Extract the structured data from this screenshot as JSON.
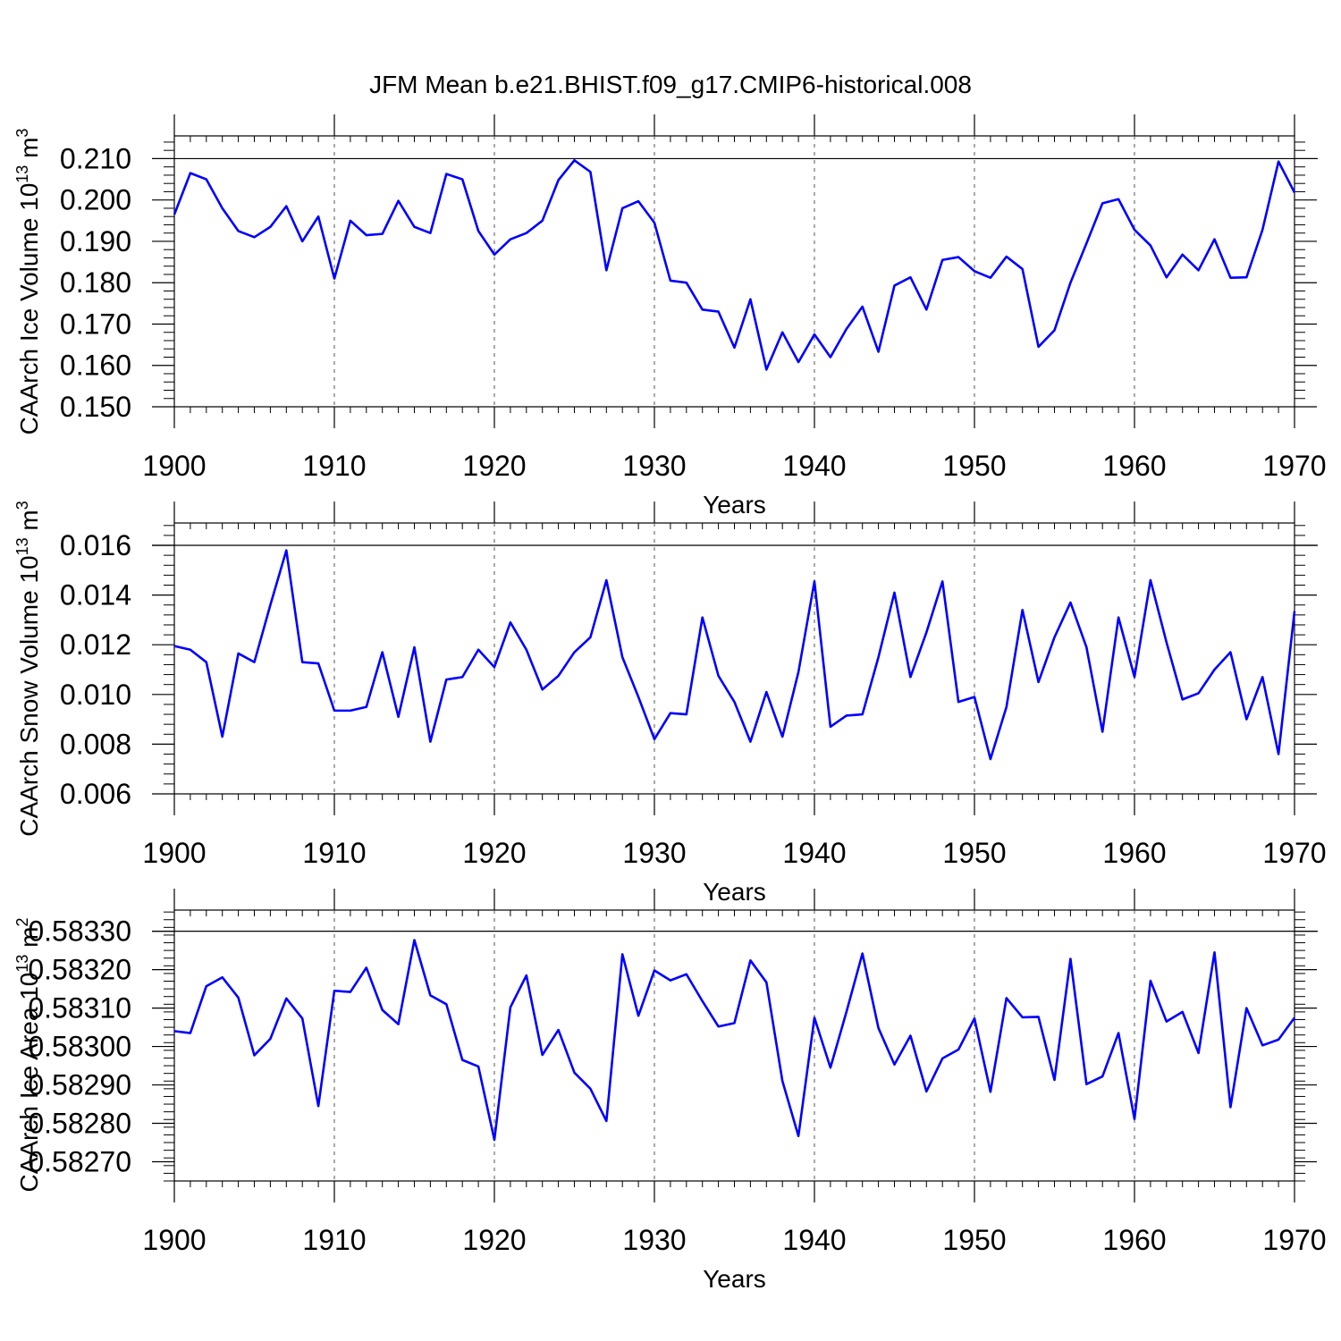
{
  "chart_data": [
    {
      "type": "line",
      "title": "JFM Mean b.e21.BHIST.f09_g17.CMIP6-historical.008",
      "ylabel": "CAArch Ice Volume 10",
      "ylabel_exponent": "13",
      "ylabel_unit": "m",
      "ylabel_unit_exponent": "3",
      "xlabel": "Years",
      "xlim": [
        1900,
        1970
      ],
      "ylim": [
        0.15,
        0.2155
      ],
      "xticks": [
        1900,
        1910,
        1920,
        1930,
        1940,
        1950,
        1960,
        1970
      ],
      "xtick_labels": [
        "1900",
        "1910",
        "1920",
        "1930",
        "1940",
        "1950",
        "1960",
        "1970"
      ],
      "yticks": [
        0.15,
        0.16,
        0.17,
        0.18,
        0.19,
        0.2,
        0.21
      ],
      "ytick_labels": [
        "0.150",
        "0.160",
        "0.170",
        "0.180",
        "0.190",
        "0.200",
        "0.210"
      ],
      "ref_line": 0.21,
      "color": "#0000ff",
      "series": [
        {
          "name": "CAArch Ice Volume",
          "x_start": 1900,
          "values": [
            0.1965,
            0.2065,
            0.205,
            0.198,
            0.1925,
            0.191,
            0.1935,
            0.1985,
            0.19,
            0.196,
            0.181,
            0.195,
            0.1915,
            0.1918,
            0.1998,
            0.1935,
            0.192,
            0.2063,
            0.205,
            0.1925,
            0.1868,
            0.1905,
            0.192,
            0.195,
            0.2048,
            0.2096,
            0.2068,
            0.183,
            0.198,
            0.1997,
            0.1945,
            0.1805,
            0.18,
            0.1735,
            0.173,
            0.1643,
            0.176,
            0.159,
            0.168,
            0.1608,
            0.1675,
            0.162,
            0.1688,
            0.1742,
            0.1633,
            0.1793,
            0.1813,
            0.1735,
            0.1855,
            0.1862,
            0.1828,
            0.1812,
            0.1863,
            0.1833,
            0.1645,
            0.1685,
            0.18,
            0.1895,
            0.1992,
            0.2002,
            0.1928,
            0.189,
            0.1813,
            0.1868,
            0.183,
            0.1905,
            0.1812,
            0.1813,
            0.1928,
            0.2093,
            0.2018
          ]
        }
      ]
    },
    {
      "type": "line",
      "ylabel": "CAArch Snow Volume 10",
      "ylabel_exponent": "13",
      "ylabel_unit": "m",
      "ylabel_unit_exponent": "3",
      "xlabel": "Years",
      "xlim": [
        1900,
        1970
      ],
      "ylim": [
        0.006,
        0.0169
      ],
      "xticks": [
        1900,
        1910,
        1920,
        1930,
        1940,
        1950,
        1960,
        1970
      ],
      "xtick_labels": [
        "1900",
        "1910",
        "1920",
        "1930",
        "1940",
        "1950",
        "1960",
        "1970"
      ],
      "yticks": [
        0.006,
        0.008,
        0.01,
        0.012,
        0.014,
        0.016
      ],
      "ytick_labels": [
        "0.006",
        "0.008",
        "0.010",
        "0.012",
        "0.014",
        "0.016"
      ],
      "ref_line": 0.016,
      "color": "#0000ff",
      "series": [
        {
          "name": "CAArch Snow Volume",
          "x_start": 1900,
          "values": [
            0.01195,
            0.0118,
            0.0113,
            0.0083,
            0.01165,
            0.0113,
            0.0136,
            0.0158,
            0.0113,
            0.01125,
            0.00935,
            0.00935,
            0.0095,
            0.0117,
            0.0091,
            0.0119,
            0.0081,
            0.0106,
            0.0107,
            0.0118,
            0.0111,
            0.0129,
            0.0118,
            0.0102,
            0.01075,
            0.0117,
            0.0123,
            0.0146,
            0.0115,
            0.0099,
            0.0082,
            0.00925,
            0.0092,
            0.0131,
            0.01075,
            0.0097,
            0.0081,
            0.0101,
            0.0083,
            0.0109,
            0.01455,
            0.0087,
            0.00915,
            0.0092,
            0.0115,
            0.0141,
            0.0107,
            0.0125,
            0.01455,
            0.0097,
            0.0099,
            0.0074,
            0.0095,
            0.0134,
            0.0105,
            0.0123,
            0.0137,
            0.0119,
            0.0085,
            0.0131,
            0.0107,
            0.0146,
            0.0121,
            0.0098,
            0.01005,
            0.011,
            0.0117,
            0.009,
            0.0107,
            0.0076,
            0.01335
          ]
        }
      ]
    },
    {
      "type": "line",
      "ylabel": "CAArch Ice Area 10",
      "ylabel_exponent": "13",
      "ylabel_unit": "m",
      "ylabel_unit_exponent": "2",
      "xlabel": "Years",
      "xlim": [
        1900,
        1970
      ],
      "ylim": [
        0.58265,
        0.583355
      ],
      "xticks": [
        1900,
        1910,
        1920,
        1930,
        1940,
        1950,
        1960,
        1970
      ],
      "xtick_labels": [
        "1900",
        "1910",
        "1920",
        "1930",
        "1940",
        "1950",
        "1960",
        "1970"
      ],
      "yticks": [
        0.5827,
        0.5828,
        0.5829,
        0.583,
        0.5831,
        0.5832,
        0.5833
      ],
      "ytick_labels": [
        "0.58270",
        "0.58280",
        "0.58290",
        "0.58300",
        "0.58310",
        "0.58320",
        "0.58330"
      ],
      "ref_line": 0.5833,
      "color": "#0000ff",
      "series": [
        {
          "name": "CAArch Ice Area",
          "x_start": 1900,
          "values": [
            0.58304,
            0.583035,
            0.583157,
            0.58318,
            0.583127,
            0.582977,
            0.58302,
            0.583125,
            0.583073,
            0.582845,
            0.583145,
            0.583142,
            0.583205,
            0.583095,
            0.583058,
            0.583277,
            0.583133,
            0.58311,
            0.582965,
            0.582948,
            0.582757,
            0.583102,
            0.583185,
            0.582978,
            0.583043,
            0.582932,
            0.58289,
            0.582806,
            0.58324,
            0.58308,
            0.583198,
            0.583172,
            0.583188,
            0.583118,
            0.583052,
            0.583061,
            0.583224,
            0.583167,
            0.58291,
            0.582767,
            0.583075,
            0.582945,
            0.58309,
            0.583242,
            0.583048,
            0.582953,
            0.583028,
            0.582883,
            0.582969,
            0.582992,
            0.583073,
            0.582882,
            0.583126,
            0.583076,
            0.583077,
            0.582913,
            0.583228,
            0.582902,
            0.582922,
            0.583035,
            0.582811,
            0.583171,
            0.583065,
            0.58309,
            0.582983,
            0.583245,
            0.582842,
            0.5831,
            0.583003,
            0.583018,
            0.583075
          ]
        }
      ]
    }
  ]
}
